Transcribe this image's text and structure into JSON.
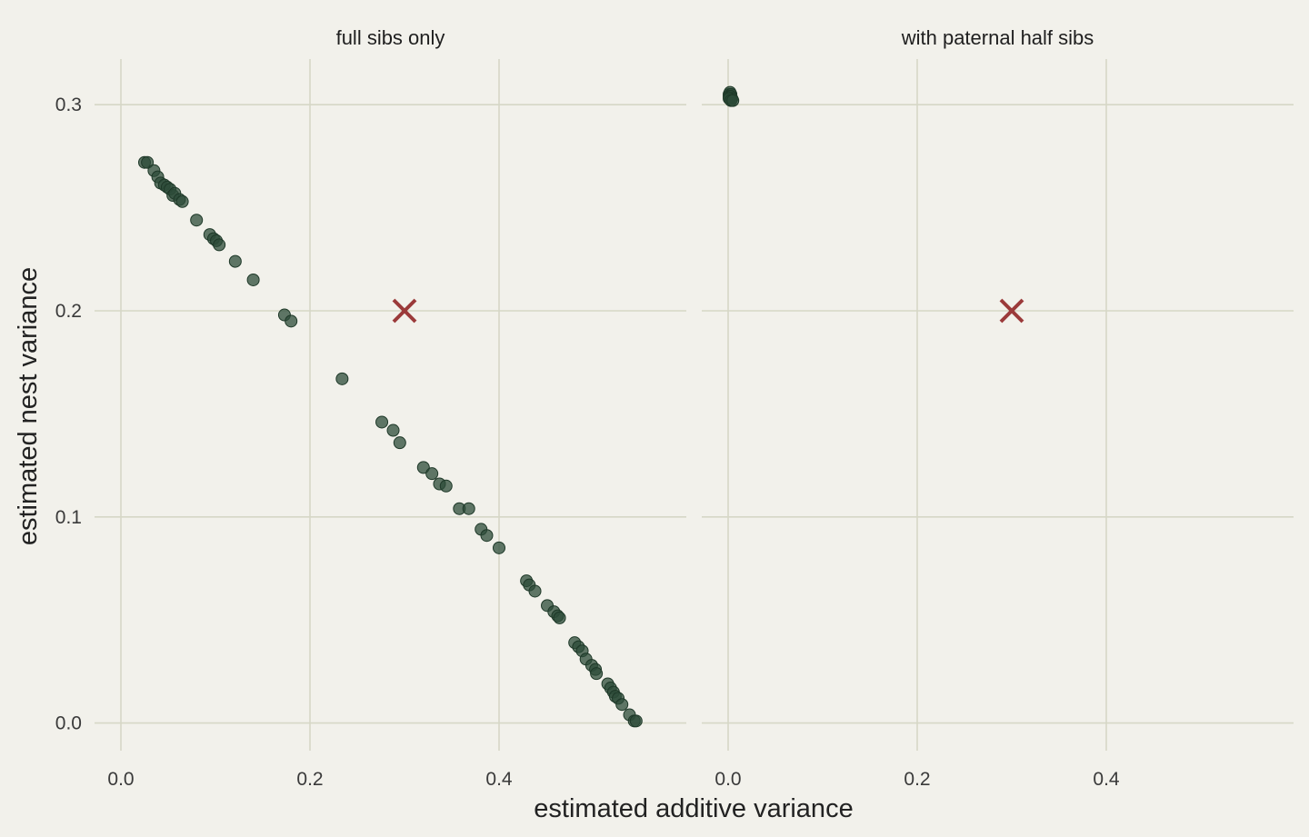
{
  "chart_data": {
    "type": "scatter",
    "xlabel": "estimated additive variance",
    "ylabel": "estimated nest variance",
    "xlim": [
      -0.06,
      0.6
    ],
    "ylim": [
      -0.015,
      0.322
    ],
    "x_ticks": [
      "0.0",
      "0.2",
      "0.4"
    ],
    "y_ticks": [
      "0.0",
      "0.1",
      "0.2",
      "0.3"
    ],
    "grid": true,
    "point_color": "#2c4b38",
    "marker_color": "#9b3a3a",
    "panels": [
      {
        "title": "full sibs only",
        "true_value": {
          "x": 0.3,
          "y": 0.2
        },
        "points": [
          [
            0.025,
            0.272
          ],
          [
            0.028,
            0.272
          ],
          [
            0.035,
            0.268
          ],
          [
            0.039,
            0.265
          ],
          [
            0.042,
            0.262
          ],
          [
            0.046,
            0.261
          ],
          [
            0.049,
            0.26
          ],
          [
            0.052,
            0.259
          ],
          [
            0.055,
            0.256
          ],
          [
            0.057,
            0.257
          ],
          [
            0.062,
            0.254
          ],
          [
            0.065,
            0.253
          ],
          [
            0.08,
            0.244
          ],
          [
            0.094,
            0.237
          ],
          [
            0.098,
            0.235
          ],
          [
            0.101,
            0.234
          ],
          [
            0.104,
            0.232
          ],
          [
            0.121,
            0.224
          ],
          [
            0.14,
            0.215
          ],
          [
            0.173,
            0.198
          ],
          [
            0.18,
            0.195
          ],
          [
            0.234,
            0.167
          ],
          [
            0.276,
            0.146
          ],
          [
            0.288,
            0.142
          ],
          [
            0.295,
            0.136
          ],
          [
            0.32,
            0.124
          ],
          [
            0.329,
            0.121
          ],
          [
            0.337,
            0.116
          ],
          [
            0.344,
            0.115
          ],
          [
            0.358,
            0.104
          ],
          [
            0.368,
            0.104
          ],
          [
            0.381,
            0.094
          ],
          [
            0.387,
            0.091
          ],
          [
            0.4,
            0.085
          ],
          [
            0.429,
            0.069
          ],
          [
            0.432,
            0.067
          ],
          [
            0.438,
            0.064
          ],
          [
            0.451,
            0.057
          ],
          [
            0.458,
            0.054
          ],
          [
            0.462,
            0.052
          ],
          [
            0.464,
            0.051
          ],
          [
            0.48,
            0.039
          ],
          [
            0.484,
            0.037
          ],
          [
            0.488,
            0.035
          ],
          [
            0.492,
            0.031
          ],
          [
            0.498,
            0.028
          ],
          [
            0.502,
            0.026
          ],
          [
            0.503,
            0.024
          ],
          [
            0.515,
            0.019
          ],
          [
            0.518,
            0.017
          ],
          [
            0.521,
            0.015
          ],
          [
            0.523,
            0.013
          ],
          [
            0.526,
            0.012
          ],
          [
            0.53,
            0.009
          ],
          [
            0.538,
            0.004
          ],
          [
            0.543,
            0.001
          ],
          [
            0.545,
            0.001
          ]
        ]
      },
      {
        "title": "with paternal half sibs",
        "true_value": {
          "x": 0.3,
          "y": 0.2
        },
        "points": [
          [
            0.001,
            0.305
          ],
          [
            0.002,
            0.306
          ],
          [
            0.003,
            0.305
          ],
          [
            0.001,
            0.304
          ],
          [
            0.003,
            0.304
          ],
          [
            0.002,
            0.303
          ],
          [
            0.004,
            0.303
          ],
          [
            0.001,
            0.303
          ],
          [
            0.003,
            0.302
          ],
          [
            0.005,
            0.302
          ]
        ]
      }
    ]
  }
}
